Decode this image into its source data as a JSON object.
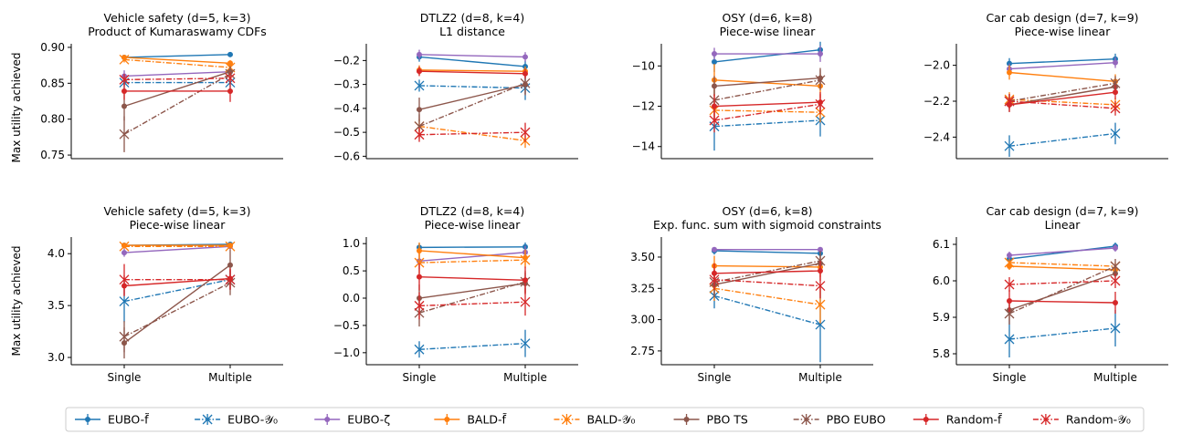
{
  "figure": {
    "ylabel": "Max utility achieved",
    "xcategories": [
      "Single",
      "Multiple"
    ]
  },
  "legend": [
    {
      "key": "eubo_f",
      "label": "EUBO-f̃",
      "color": "#1f77b4",
      "marker": "dot",
      "dash": false
    },
    {
      "key": "eubo_y0",
      "label": "EUBO-𝒴₀",
      "color": "#1f77b4",
      "marker": "x",
      "dash": true
    },
    {
      "key": "eubo_zeta",
      "label": "EUBO-ζ",
      "color": "#9467bd",
      "marker": "dot",
      "dash": false
    },
    {
      "key": "bald_f",
      "label": "BALD-f̃",
      "color": "#ff7f0e",
      "marker": "dot",
      "dash": false
    },
    {
      "key": "bald_y0",
      "label": "BALD-𝒴₀",
      "color": "#ff7f0e",
      "marker": "x",
      "dash": true
    },
    {
      "key": "pbo_ts",
      "label": "PBO TS",
      "color": "#8c564b",
      "marker": "dot",
      "dash": false
    },
    {
      "key": "pbo_eubo",
      "label": "PBO EUBO",
      "color": "#8c564b",
      "marker": "x",
      "dash": true
    },
    {
      "key": "random_f",
      "label": "Random-f̃",
      "color": "#d62728",
      "marker": "dot",
      "dash": false
    },
    {
      "key": "random_y0",
      "label": "Random-𝒴₀",
      "color": "#d62728",
      "marker": "x",
      "dash": true
    }
  ],
  "chart_data": [
    {
      "type": "line",
      "title": "Vehicle safety (d=5, k=3)",
      "subtitle": "Product of Kumaraswamy CDFs",
      "categories": [
        "Single",
        "Multiple"
      ],
      "ylim": [
        0.745,
        0.905
      ],
      "yticks": [
        0.75,
        0.8,
        0.85,
        0.9
      ],
      "ytick_labels": [
        "0.75",
        "0.80",
        "0.85",
        "0.90"
      ],
      "series": [
        {
          "key": "eubo_f",
          "values": [
            0.886,
            0.89
          ],
          "err": [
            0.003,
            0.003
          ]
        },
        {
          "key": "eubo_y0",
          "values": [
            0.851,
            0.851
          ],
          "err": [
            0.01,
            0.008
          ]
        },
        {
          "key": "eubo_zeta",
          "values": [
            0.86,
            0.866
          ],
          "err": [
            0.008,
            0.006
          ]
        },
        {
          "key": "bald_f",
          "values": [
            0.886,
            0.878
          ],
          "err": [
            0.003,
            0.004
          ]
        },
        {
          "key": "bald_y0",
          "values": [
            0.883,
            0.872
          ],
          "err": [
            0.004,
            0.005
          ]
        },
        {
          "key": "pbo_ts",
          "values": [
            0.818,
            0.866
          ],
          "err": [
            0.02,
            0.008
          ]
        },
        {
          "key": "pbo_eubo",
          "values": [
            0.779,
            0.863
          ],
          "err": [
            0.025,
            0.008
          ]
        },
        {
          "key": "random_f",
          "values": [
            0.839,
            0.839
          ],
          "err": [
            0.012,
            0.015
          ]
        },
        {
          "key": "random_y0",
          "values": [
            0.855,
            0.857
          ],
          "err": [
            0.008,
            0.008
          ]
        }
      ]
    },
    {
      "type": "line",
      "title": "DTLZ2 (d=8, k=4)",
      "subtitle": "L1 distance",
      "categories": [
        "Single",
        "Multiple"
      ],
      "ylim": [
        -0.61,
        -0.13
      ],
      "yticks": [
        -0.6,
        -0.5,
        -0.4,
        -0.3,
        -0.2
      ],
      "ytick_labels": [
        "−0.6",
        "−0.5",
        "−0.4",
        "−0.3",
        "−0.2"
      ],
      "series": [
        {
          "key": "eubo_f",
          "values": [
            -0.185,
            -0.225
          ],
          "err": [
            0.02,
            0.025
          ]
        },
        {
          "key": "eubo_y0",
          "values": [
            -0.305,
            -0.315
          ],
          "err": [
            0.025,
            0.05
          ]
        },
        {
          "key": "eubo_zeta",
          "values": [
            -0.175,
            -0.185
          ],
          "err": [
            0.02,
            0.02
          ]
        },
        {
          "key": "bald_f",
          "values": [
            -0.24,
            -0.245
          ],
          "err": [
            0.02,
            0.02
          ]
        },
        {
          "key": "bald_y0",
          "values": [
            -0.475,
            -0.535
          ],
          "err": [
            0.03,
            0.03
          ]
        },
        {
          "key": "pbo_ts",
          "values": [
            -0.405,
            -0.3
          ],
          "err": [
            0.05,
            0.04
          ]
        },
        {
          "key": "pbo_eubo",
          "values": [
            -0.475,
            -0.295
          ],
          "err": [
            0.05,
            0.05
          ]
        },
        {
          "key": "random_f",
          "values": [
            -0.245,
            -0.255
          ],
          "err": [
            0.02,
            0.02
          ]
        },
        {
          "key": "random_y0",
          "values": [
            -0.51,
            -0.5
          ],
          "err": [
            0.03,
            0.04
          ]
        }
      ]
    },
    {
      "type": "line",
      "title": "OSY (d=6, k=8)",
      "subtitle": "Piece-wise linear",
      "categories": [
        "Single",
        "Multiple"
      ],
      "ylim": [
        -14.6,
        -8.9
      ],
      "yticks": [
        -14,
        -12,
        -10
      ],
      "ytick_labels": [
        "−14",
        "−12",
        "−10"
      ],
      "series": [
        {
          "key": "eubo_f",
          "values": [
            -9.8,
            -9.2
          ],
          "err": [
            0.5,
            0.4
          ]
        },
        {
          "key": "eubo_y0",
          "values": [
            -13.0,
            -12.7
          ],
          "err": [
            1.2,
            0.8
          ]
        },
        {
          "key": "eubo_zeta",
          "values": [
            -9.4,
            -9.4
          ],
          "err": [
            0.3,
            0.4
          ]
        },
        {
          "key": "bald_f",
          "values": [
            -10.7,
            -11.0
          ],
          "err": [
            0.8,
            0.6
          ]
        },
        {
          "key": "bald_y0",
          "values": [
            -12.2,
            -12.3
          ],
          "err": [
            0.6,
            0.5
          ]
        },
        {
          "key": "pbo_ts",
          "values": [
            -11.0,
            -10.6
          ],
          "err": [
            0.5,
            0.5
          ]
        },
        {
          "key": "pbo_eubo",
          "values": [
            -11.7,
            -10.7
          ],
          "err": [
            0.6,
            0.5
          ]
        },
        {
          "key": "random_f",
          "values": [
            -12.0,
            -11.8
          ],
          "err": [
            0.6,
            0.5
          ]
        },
        {
          "key": "random_y0",
          "values": [
            -12.7,
            -11.9
          ],
          "err": [
            0.6,
            0.5
          ]
        }
      ]
    },
    {
      "type": "line",
      "title": "Car cab design (d=7, k=9)",
      "subtitle": "Piece-wise linear",
      "categories": [
        "Single",
        "Multiple"
      ],
      "ylim": [
        -2.52,
        -1.88
      ],
      "yticks": [
        -2.4,
        -2.2,
        -2.0
      ],
      "ytick_labels": [
        "−2.4",
        "−2.2",
        "−2.0"
      ],
      "series": [
        {
          "key": "eubo_f",
          "values": [
            -1.99,
            -1.965
          ],
          "err": [
            0.03,
            0.03
          ]
        },
        {
          "key": "eubo_y0",
          "values": [
            -2.45,
            -2.38
          ],
          "err": [
            0.06,
            0.06
          ]
        },
        {
          "key": "eubo_zeta",
          "values": [
            -2.02,
            -1.985
          ],
          "err": [
            0.03,
            0.03
          ]
        },
        {
          "key": "bald_f",
          "values": [
            -2.04,
            -2.09
          ],
          "err": [
            0.04,
            0.04
          ]
        },
        {
          "key": "bald_y0",
          "values": [
            -2.19,
            -2.22
          ],
          "err": [
            0.04,
            0.04
          ]
        },
        {
          "key": "pbo_ts",
          "values": [
            -2.22,
            -2.12
          ],
          "err": [
            0.04,
            0.04
          ]
        },
        {
          "key": "pbo_eubo",
          "values": [
            -2.2,
            -2.1
          ],
          "err": [
            0.04,
            0.04
          ]
        },
        {
          "key": "random_f",
          "values": [
            -2.22,
            -2.15
          ],
          "err": [
            0.04,
            0.04
          ]
        },
        {
          "key": "random_y0",
          "values": [
            -2.2,
            -2.24
          ],
          "err": [
            0.04,
            0.04
          ]
        }
      ]
    },
    {
      "type": "line",
      "title": "Vehicle safety (d=5, k=3)",
      "subtitle": "Piece-wise linear",
      "categories": [
        "Single",
        "Multiple"
      ],
      "ylim": [
        2.93,
        4.16
      ],
      "yticks": [
        3.0,
        3.5,
        4.0
      ],
      "ytick_labels": [
        "3.0",
        "3.5",
        "4.0"
      ],
      "series": [
        {
          "key": "eubo_f",
          "values": [
            4.08,
            4.09
          ],
          "err": [
            0.02,
            0.02
          ]
        },
        {
          "key": "eubo_y0",
          "values": [
            3.54,
            3.75
          ],
          "err": [
            0.2,
            0.1
          ]
        },
        {
          "key": "eubo_zeta",
          "values": [
            4.01,
            4.07
          ],
          "err": [
            0.04,
            0.03
          ]
        },
        {
          "key": "bald_f",
          "values": [
            4.08,
            4.08
          ],
          "err": [
            0.02,
            0.02
          ]
        },
        {
          "key": "bald_y0",
          "values": [
            4.07,
            4.07
          ],
          "err": [
            0.02,
            0.02
          ]
        },
        {
          "key": "pbo_ts",
          "values": [
            3.14,
            3.89
          ],
          "err": [
            0.15,
            0.15
          ]
        },
        {
          "key": "pbo_eubo",
          "values": [
            3.2,
            3.72
          ],
          "err": [
            0.15,
            0.12
          ]
        },
        {
          "key": "random_f",
          "values": [
            3.69,
            3.76
          ],
          "err": [
            0.1,
            0.1
          ]
        },
        {
          "key": "random_y0",
          "values": [
            3.75,
            3.75
          ],
          "err": [
            0.15,
            0.1
          ]
        }
      ]
    },
    {
      "type": "line",
      "title": "DTLZ2 (d=8, k=4)",
      "subtitle": "Piece-wise linear",
      "categories": [
        "Single",
        "Multiple"
      ],
      "ylim": [
        -1.22,
        1.12
      ],
      "yticks": [
        -1.0,
        -0.5,
        0.0,
        0.5,
        1.0
      ],
      "ytick_labels": [
        "−1.0",
        "−0.5",
        "0.0",
        "0.5",
        "1.0"
      ],
      "series": [
        {
          "key": "eubo_f",
          "values": [
            0.93,
            0.94
          ],
          "err": [
            0.08,
            0.08
          ]
        },
        {
          "key": "eubo_y0",
          "values": [
            -0.94,
            -0.83
          ],
          "err": [
            0.15,
            0.25
          ]
        },
        {
          "key": "eubo_zeta",
          "values": [
            0.68,
            0.84
          ],
          "err": [
            0.15,
            0.12
          ]
        },
        {
          "key": "bald_f",
          "values": [
            0.87,
            0.74
          ],
          "err": [
            0.15,
            0.15
          ]
        },
        {
          "key": "bald_y0",
          "values": [
            0.65,
            0.7
          ],
          "err": [
            0.2,
            0.15
          ]
        },
        {
          "key": "pbo_ts",
          "values": [
            0.0,
            0.27
          ],
          "err": [
            0.25,
            0.2
          ]
        },
        {
          "key": "pbo_eubo",
          "values": [
            -0.27,
            0.3
          ],
          "err": [
            0.25,
            0.2
          ]
        },
        {
          "key": "random_f",
          "values": [
            0.39,
            0.33
          ],
          "err": [
            0.25,
            0.25
          ]
        },
        {
          "key": "random_y0",
          "values": [
            -0.14,
            -0.07
          ],
          "err": [
            0.25,
            0.25
          ]
        }
      ]
    },
    {
      "type": "line",
      "title": "OSY (d=6, k=8)",
      "subtitle": "Exp. func. sum with sigmoid constraints",
      "categories": [
        "Single",
        "Multiple"
      ],
      "ylim": [
        2.64,
        3.66
      ],
      "yticks": [
        2.75,
        3.0,
        3.25,
        3.5
      ],
      "ytick_labels": [
        "2.75",
        "3.00",
        "3.25",
        "3.50"
      ],
      "series": [
        {
          "key": "eubo_f",
          "values": [
            3.55,
            3.53
          ],
          "err": [
            0.03,
            0.03
          ]
        },
        {
          "key": "eubo_y0",
          "values": [
            3.19,
            2.96
          ],
          "err": [
            0.1,
            0.3
          ]
        },
        {
          "key": "eubo_zeta",
          "values": [
            3.56,
            3.56
          ],
          "err": [
            0.02,
            0.02
          ]
        },
        {
          "key": "bald_f",
          "values": [
            3.43,
            3.42
          ],
          "err": [
            0.08,
            0.08
          ]
        },
        {
          "key": "bald_y0",
          "values": [
            3.25,
            3.12
          ],
          "err": [
            0.1,
            0.15
          ]
        },
        {
          "key": "pbo_ts",
          "values": [
            3.28,
            3.45
          ],
          "err": [
            0.1,
            0.08
          ]
        },
        {
          "key": "pbo_eubo",
          "values": [
            3.3,
            3.47
          ],
          "err": [
            0.1,
            0.08
          ]
        },
        {
          "key": "random_f",
          "values": [
            3.37,
            3.39
          ],
          "err": [
            0.08,
            0.08
          ]
        },
        {
          "key": "random_y0",
          "values": [
            3.32,
            3.27
          ],
          "err": [
            0.08,
            0.1
          ]
        }
      ]
    },
    {
      "type": "line",
      "title": "Car cab design (d=7, k=9)",
      "subtitle": "Linear",
      "categories": [
        "Single",
        "Multiple"
      ],
      "ylim": [
        5.77,
        6.12
      ],
      "yticks": [
        5.8,
        5.9,
        6.0,
        6.1
      ],
      "ytick_labels": [
        "5.8",
        "5.9",
        "6.0",
        "6.1"
      ],
      "series": [
        {
          "key": "eubo_f",
          "values": [
            6.06,
            6.095
          ],
          "err": [
            0.01,
            0.01
          ]
        },
        {
          "key": "eubo_y0",
          "values": [
            5.84,
            5.87
          ],
          "err": [
            0.05,
            0.05
          ]
        },
        {
          "key": "eubo_zeta",
          "values": [
            6.07,
            6.09
          ],
          "err": [
            0.01,
            0.01
          ]
        },
        {
          "key": "bald_f",
          "values": [
            6.04,
            6.03
          ],
          "err": [
            0.01,
            0.01
          ]
        },
        {
          "key": "bald_y0",
          "values": [
            6.05,
            6.04
          ],
          "err": [
            0.01,
            0.01
          ]
        },
        {
          "key": "pbo_ts",
          "values": [
            5.92,
            6.02
          ],
          "err": [
            0.03,
            0.02
          ]
        },
        {
          "key": "pbo_eubo",
          "values": [
            5.91,
            6.04
          ],
          "err": [
            0.03,
            0.02
          ]
        },
        {
          "key": "random_f",
          "values": [
            5.945,
            5.94
          ],
          "err": [
            0.03,
            0.03
          ]
        },
        {
          "key": "random_y0",
          "values": [
            5.99,
            6.0
          ],
          "err": [
            0.02,
            0.02
          ]
        }
      ]
    }
  ]
}
